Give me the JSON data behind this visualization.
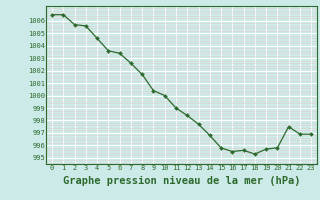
{
  "x": [
    0,
    1,
    2,
    3,
    4,
    5,
    6,
    7,
    8,
    9,
    10,
    11,
    12,
    13,
    14,
    15,
    16,
    17,
    18,
    19,
    20,
    21,
    22,
    23
  ],
  "y": [
    1006.5,
    1006.5,
    1005.7,
    1005.6,
    1004.6,
    1003.6,
    1003.4,
    1002.6,
    1001.7,
    1000.4,
    1000.0,
    999.0,
    998.4,
    997.7,
    996.8,
    995.8,
    995.5,
    995.6,
    995.3,
    995.7,
    995.8,
    997.5,
    996.9,
    996.9
  ],
  "line_color": "#2d6a2d",
  "marker": "D",
  "marker_size": 2.0,
  "bg_color": "#cceae7",
  "major_grid_color": "#ffffff",
  "minor_grid_color": "#e0d0d0",
  "xlabel": "Graphe pression niveau de la mer (hPa)",
  "xlabel_fontsize": 7.5,
  "ytick_labels": [
    "995",
    "996",
    "997",
    "998",
    "999",
    "1000",
    "1001",
    "1002",
    "1003",
    "1004",
    "1005",
    "1006"
  ],
  "ytick_vals": [
    995,
    996,
    997,
    998,
    999,
    1000,
    1001,
    1002,
    1003,
    1004,
    1005,
    1006
  ],
  "ylim": [
    994.5,
    1007.2
  ],
  "xlim": [
    -0.5,
    23.5
  ]
}
